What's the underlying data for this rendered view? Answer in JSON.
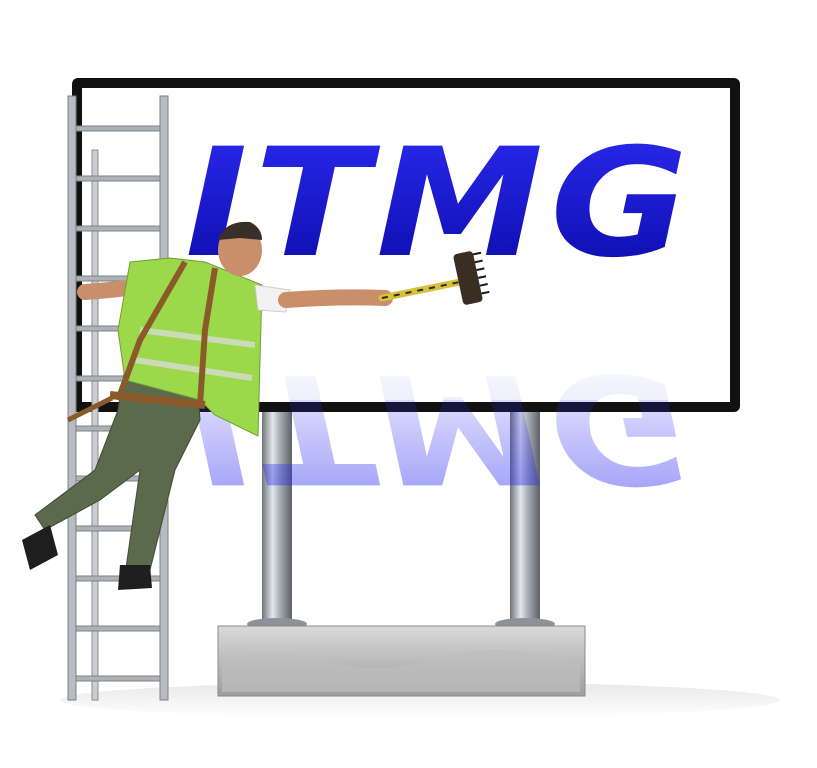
{
  "billboard": {
    "logo_text": "ITMG",
    "logo_color": "#1a1adb",
    "frame_color": "#111111",
    "panel_color": "#ffffff"
  },
  "colors": {
    "post": "#9aa0a8",
    "base": "#b9b9b9",
    "vest": "#9bd84a",
    "trousers": "#5a6a4a",
    "ladder": "#b8bcc2"
  },
  "icons": {
    "worker": "worker-figure",
    "ladder": "ladder",
    "brush": "broom-brush"
  }
}
